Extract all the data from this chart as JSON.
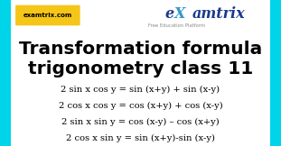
{
  "bg_color": "#00d4e8",
  "content_bg": "#ffffff",
  "title_line1": "Transformation formula",
  "title_line2": "trigonometry class 11",
  "formulas": [
    "2 sin x cos y = sin (x+y) + sin (x-y)",
    "2 cos x cos y = cos (x+y) + cos (x-y)",
    "2 sin x sin y = cos (x-y) – cos (x+y)",
    "2 cos x sin y = sin (x+y)-sin (x-y)"
  ],
  "logo_text": "examtrix.com",
  "logo_bg": "#f5c518",
  "logo_color": "#000000",
  "brand_color": "#1a3a8c",
  "brand_sub": "Free Education Platform",
  "brand_sub_color": "#888888",
  "title_color": "#000000",
  "formula_color": "#000000",
  "title_fontsize": 14.5,
  "formula_fontsize": 7.2,
  "border_width": 0.038,
  "logo_fontsize": 5.0,
  "brand_fontsize": 11.5,
  "brand_sub_fontsize": 3.8
}
